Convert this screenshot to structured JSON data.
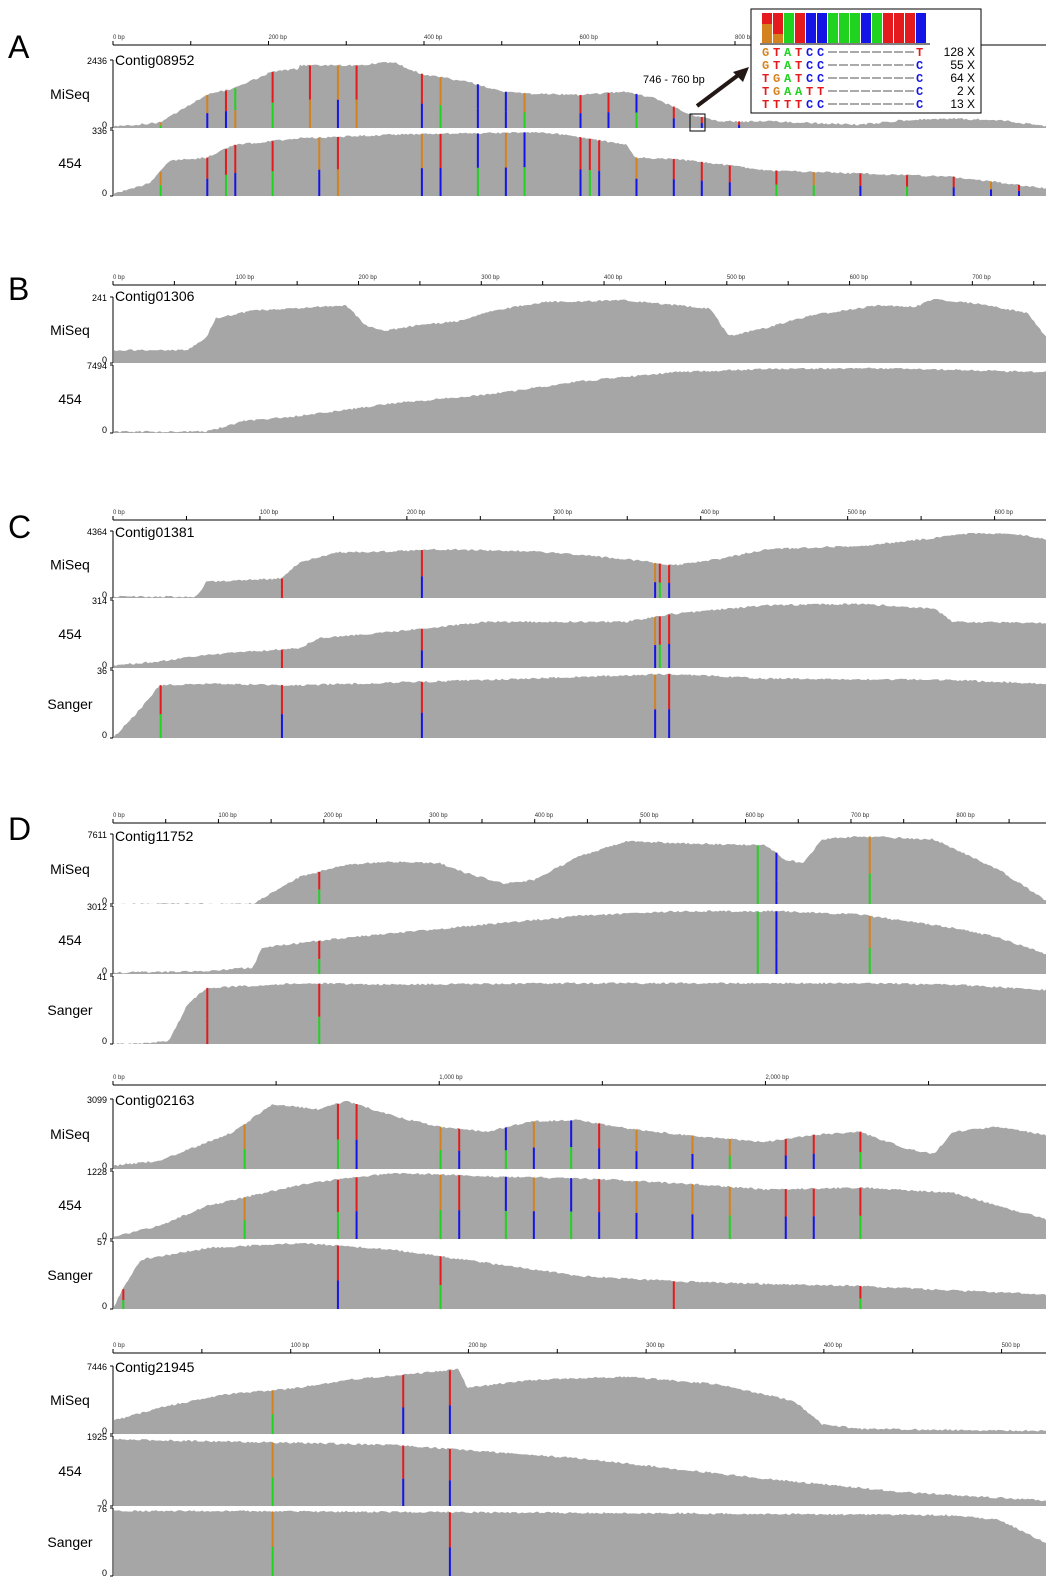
{
  "colors": {
    "coverage": "#a6a6a6",
    "A": "#1fd31f",
    "C": "#1414e6",
    "G": "#d4821e",
    "T": "#e41a1c",
    "axis": "#000000"
  },
  "panels": [
    {
      "letter": "A",
      "contigs": [
        {
          "name": "Contig08952",
          "ruler": {
            "labels": [
              "0 bp",
              "200 bp",
              "400 bp",
              "600 bp",
              "800 bp"
            ],
            "max_bp": 1200
          },
          "tracks": [
            {
              "label": "MiSeq",
              "ymax": "2436",
              "ymin": "0"
            },
            {
              "label": "454",
              "ymax": "336",
              "ymin": "0"
            }
          ]
        }
      ]
    },
    {
      "letter": "B",
      "contigs": [
        {
          "name": "Contig01306",
          "ruler": {
            "labels": [
              "0 bp",
              "100 bp",
              "200 bp",
              "300 bp",
              "400 bp",
              "500 bp",
              "600 bp",
              "700 bp"
            ],
            "max_bp": 760
          },
          "tracks": [
            {
              "label": "MiSeq",
              "ymax": "241",
              "ymin": "0"
            },
            {
              "label": "454",
              "ymax": "7494",
              "ymin": "0"
            }
          ]
        }
      ]
    },
    {
      "letter": "C",
      "contigs": [
        {
          "name": "Contig01381",
          "ruler": {
            "labels": [
              "0 bp",
              "100 bp",
              "200 bp",
              "300 bp",
              "400 bp",
              "500 bp",
              "600 bp"
            ],
            "max_bp": 635
          },
          "tracks": [
            {
              "label": "MiSeq",
              "ymax": "4364",
              "ymin": "0"
            },
            {
              "label": "454",
              "ymax": "314",
              "ymin": "0"
            },
            {
              "label": "Sanger",
              "ymax": "36",
              "ymin": "0"
            }
          ]
        }
      ]
    },
    {
      "letter": "D",
      "contigs": [
        {
          "name": "Contig11752",
          "ruler": {
            "labels": [
              "0 bp",
              "100 bp",
              "200 bp",
              "300 bp",
              "400 bp",
              "500 bp",
              "600 bp",
              "700 bp",
              "800 bp"
            ],
            "max_bp": 885
          },
          "tracks": [
            {
              "label": "MiSeq",
              "ymax": "7611",
              "ymin": "0"
            },
            {
              "label": "454",
              "ymax": "3012",
              "ymin": "0"
            },
            {
              "label": "Sanger",
              "ymax": "41",
              "ymin": "0"
            }
          ]
        },
        {
          "name": "Contig02163",
          "ruler": {
            "labels": [
              "0 bp",
              "1,000 bp",
              "2,000 bp"
            ],
            "max_bp": 2860
          },
          "tracks": [
            {
              "label": "MiSeq",
              "ymax": "3099",
              "ymin": "0"
            },
            {
              "label": "454",
              "ymax": "1228",
              "ymin": "0"
            },
            {
              "label": "Sanger",
              "ymax": "57",
              "ymin": "0"
            }
          ]
        },
        {
          "name": "Contig21945",
          "ruler": {
            "labels": [
              "0 bp",
              "100 bp",
              "200 bp",
              "300 bp",
              "400 bp",
              "500 bp"
            ],
            "max_bp": 525
          },
          "tracks": [
            {
              "label": "MiSeq",
              "ymax": "7446",
              "ymin": "0"
            },
            {
              "label": "454",
              "ymax": "1925",
              "ymin": "0"
            },
            {
              "label": "Sanger",
              "ymax": "76",
              "ymin": "0"
            }
          ]
        }
      ]
    }
  ],
  "inset": {
    "region_label": "746 - 760 bp",
    "reads": [
      {
        "seq": "GTATCC--------T",
        "count": "128 X"
      },
      {
        "seq": "GTATCC--------C",
        "count": "55 X"
      },
      {
        "seq": "TGATCC--------C",
        "count": "64 X"
      },
      {
        "seq": "TGAATT--------C",
        "count": "2 X"
      },
      {
        "seq": "TTTTCC--------C",
        "count": "13 X"
      }
    ]
  }
}
